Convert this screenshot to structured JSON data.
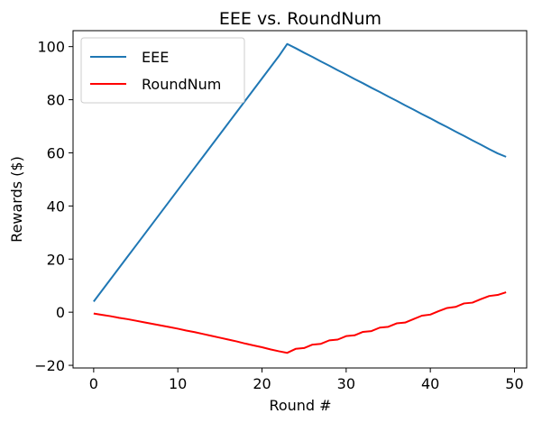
{
  "chart_data": {
    "type": "line",
    "title": "EEE vs. RoundNum",
    "xlabel": "Round #",
    "ylabel": "Rewards ($)",
    "xlim": [
      -2.45,
      51.45
    ],
    "ylim": [
      -21,
      106
    ],
    "xticks": [
      0,
      10,
      20,
      30,
      40,
      50
    ],
    "yticks": [
      -20,
      0,
      20,
      40,
      60,
      80,
      100
    ],
    "xtick_labels": [
      "0",
      "10",
      "20",
      "30",
      "40",
      "50"
    ],
    "ytick_labels": [
      "−20",
      "0",
      "20",
      "40",
      "60",
      "80",
      "100"
    ],
    "grid": false,
    "legend": "upper-left",
    "series": [
      {
        "name": "EEE",
        "color": "#1f77b4",
        "x": [
          0,
          1,
          2,
          3,
          4,
          5,
          6,
          7,
          8,
          9,
          10,
          11,
          12,
          13,
          14,
          15,
          16,
          17,
          18,
          19,
          20,
          21,
          22,
          23,
          24,
          25,
          26,
          27,
          28,
          29,
          30,
          31,
          32,
          33,
          34,
          35,
          36,
          37,
          38,
          39,
          40,
          41,
          42,
          43,
          44,
          45,
          46,
          47,
          48,
          49
        ],
        "values": [
          4,
          8.2,
          12.4,
          16.6,
          20.8,
          25,
          29.2,
          33.4,
          37.6,
          41.8,
          46,
          50.2,
          54.4,
          58.6,
          62.8,
          67,
          71.2,
          75.4,
          79.6,
          83.8,
          88,
          92.2,
          96.4,
          101,
          99.4,
          97.7,
          96.1,
          94.4,
          92.8,
          91.1,
          89.5,
          87.8,
          86.2,
          84.5,
          82.9,
          81.2,
          79.6,
          77.9,
          76.3,
          74.6,
          73,
          71.3,
          69.7,
          68,
          66.4,
          64.7,
          63.1,
          61.4,
          59.8,
          58.5
        ]
      },
      {
        "name": "RoundNum",
        "color": "#ff0000",
        "x": [
          0,
          1,
          2,
          3,
          4,
          5,
          6,
          7,
          8,
          9,
          10,
          11,
          12,
          13,
          14,
          15,
          16,
          17,
          18,
          19,
          20,
          21,
          22,
          23,
          24,
          25,
          26,
          27,
          28,
          29,
          30,
          31,
          32,
          33,
          34,
          35,
          36,
          37,
          38,
          39,
          40,
          41,
          42,
          43,
          44,
          45,
          46,
          47,
          48,
          49
        ],
        "values": [
          -0.5,
          -1,
          -1.5,
          -2.1,
          -2.6,
          -3.2,
          -3.8,
          -4.4,
          -5,
          -5.6,
          -6.2,
          -6.9,
          -7.5,
          -8.2,
          -8.9,
          -9.6,
          -10.3,
          -11,
          -11.8,
          -12.5,
          -13.2,
          -14,
          -14.7,
          -15.3,
          -13.8,
          -13.5,
          -12.2,
          -11.9,
          -10.6,
          -10.3,
          -9,
          -8.7,
          -7.4,
          -7.1,
          -5.8,
          -5.5,
          -4.2,
          -3.9,
          -2.6,
          -1.3,
          -0.9,
          0.4,
          1.6,
          2,
          3.3,
          3.6,
          4.9,
          6.1,
          6.5,
          7.5
        ]
      }
    ]
  }
}
